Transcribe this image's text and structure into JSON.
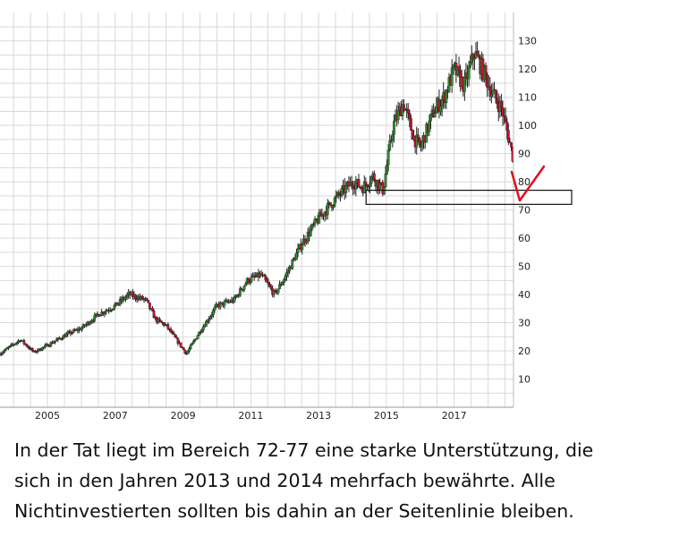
{
  "chart_data": {
    "type": "candlestick",
    "title": "",
    "xlabel": "",
    "ylabel": "",
    "x_ticks": [
      "2005",
      "2007",
      "2009",
      "2011",
      "2013",
      "2015",
      "2017"
    ],
    "y_ticks": [
      10,
      20,
      30,
      40,
      50,
      60,
      70,
      80,
      90,
      100,
      110,
      120,
      130
    ],
    "ylim": [
      0,
      135
    ],
    "xlim": [
      2003.6,
      2018.75
    ],
    "grid": true,
    "y_axis_side": "right",
    "colors": {
      "up": "#2e8b2e",
      "down": "#c8102e",
      "wick": "#222222",
      "grid": "#d9d9d9",
      "annotation": "#e0101e"
    },
    "price_path": [
      {
        "x": 2003.6,
        "y": 19
      },
      {
        "x": 2004.2,
        "y": 24
      },
      {
        "x": 2004.6,
        "y": 19.5
      },
      {
        "x": 2005.0,
        "y": 22
      },
      {
        "x": 2005.6,
        "y": 26
      },
      {
        "x": 2006.0,
        "y": 28
      },
      {
        "x": 2006.5,
        "y": 33
      },
      {
        "x": 2007.0,
        "y": 36
      },
      {
        "x": 2007.4,
        "y": 40
      },
      {
        "x": 2007.9,
        "y": 38
      },
      {
        "x": 2008.2,
        "y": 31
      },
      {
        "x": 2008.5,
        "y": 29
      },
      {
        "x": 2008.8,
        "y": 24
      },
      {
        "x": 2009.1,
        "y": 19
      },
      {
        "x": 2009.5,
        "y": 27
      },
      {
        "x": 2010.0,
        "y": 36
      },
      {
        "x": 2010.5,
        "y": 38
      },
      {
        "x": 2010.9,
        "y": 45
      },
      {
        "x": 2011.3,
        "y": 47
      },
      {
        "x": 2011.7,
        "y": 40
      },
      {
        "x": 2012.0,
        "y": 46
      },
      {
        "x": 2012.5,
        "y": 58
      },
      {
        "x": 2013.0,
        "y": 67
      },
      {
        "x": 2013.5,
        "y": 74
      },
      {
        "x": 2014.0,
        "y": 80
      },
      {
        "x": 2014.3,
        "y": 78
      },
      {
        "x": 2014.6,
        "y": 82
      },
      {
        "x": 2014.9,
        "y": 77
      },
      {
        "x": 2015.2,
        "y": 100
      },
      {
        "x": 2015.5,
        "y": 108
      },
      {
        "x": 2015.8,
        "y": 96
      },
      {
        "x": 2016.0,
        "y": 92
      },
      {
        "x": 2016.4,
        "y": 105
      },
      {
        "x": 2016.7,
        "y": 110
      },
      {
        "x": 2017.0,
        "y": 120
      },
      {
        "x": 2017.3,
        "y": 114
      },
      {
        "x": 2017.6,
        "y": 126
      },
      {
        "x": 2017.9,
        "y": 118
      },
      {
        "x": 2018.1,
        "y": 112
      },
      {
        "x": 2018.4,
        "y": 106
      },
      {
        "x": 2018.6,
        "y": 96
      },
      {
        "x": 2018.75,
        "y": 88
      }
    ],
    "annotations": [
      {
        "type": "support_zone",
        "y_range": [
          72,
          77
        ],
        "x_from": 2014.4
      },
      {
        "type": "checkmark",
        "color": "#e0101e"
      }
    ]
  },
  "caption": {
    "lines": [
      "In der Tat liegt im Bereich 72-77 eine starke Unterstützung, die",
      "sich in den Jahren 2013 und 2014 mehrfach bewährte. Alle",
      "Nichtinvestierten sollten bis dahin an der Seitenlinie bleiben."
    ]
  }
}
